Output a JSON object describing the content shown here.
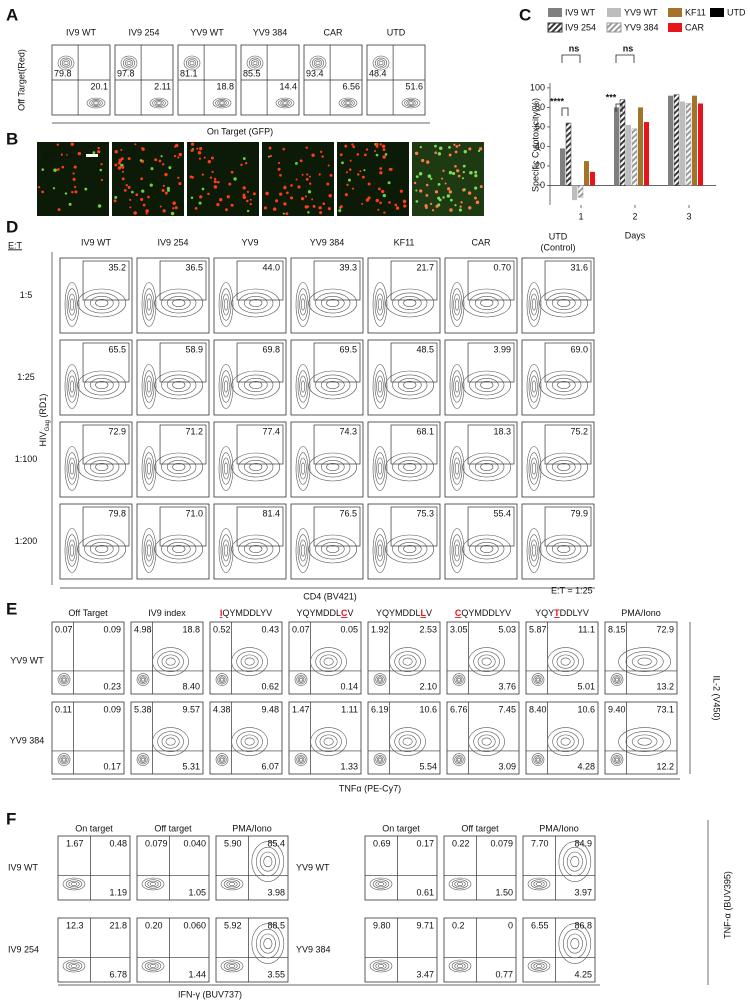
{
  "panel_a": {
    "label": "A",
    "y_label": "Off Target(Red)",
    "x_label": "On Target (GFP)",
    "plots": [
      {
        "title": "IV9 WT",
        "ul": "79.8",
        "lr": "20.1"
      },
      {
        "title": "IV9 254",
        "ul": "97.8",
        "lr": "2.11"
      },
      {
        "title": "YV9 WT",
        "ul": "81.1",
        "lr": "18.8"
      },
      {
        "title": "YV9 384",
        "ul": "85.5",
        "lr": "14.4"
      },
      {
        "title": "CAR",
        "ul": "93.4",
        "lr": "6.56"
      },
      {
        "title": "UTD",
        "ul": "48.4",
        "lr": "51.6"
      }
    ]
  },
  "panel_b": {
    "label": "B",
    "scale_bar": "100 μm"
  },
  "chart_data": {
    "type": "bar",
    "label": "C",
    "categories": [
      "1",
      "2",
      "3"
    ],
    "x_label": "Days",
    "y_label": "Specific Cytotoxicity(%)",
    "ylim": [
      -20,
      105
    ],
    "yticks": [
      0,
      20,
      40,
      60,
      80,
      100
    ],
    "series": [
      {
        "name": "IV9 WT",
        "color": "#7f7f7f",
        "values": [
          38,
          80,
          92
        ]
      },
      {
        "name": "IV9 254",
        "color": "#3a3a3a",
        "hatch": true,
        "values": [
          64,
          88,
          93
        ]
      },
      {
        "name": "YV9 WT",
        "color": "#bdbdbd",
        "values": [
          -15,
          62,
          86
        ]
      },
      {
        "name": "YV9 384",
        "color": "#9a9a9a",
        "hatch": true,
        "values": [
          -12,
          58,
          84
        ]
      },
      {
        "name": "KF11",
        "color": "#a5722a",
        "values": [
          25,
          80,
          92
        ]
      },
      {
        "name": "CAR",
        "color": "#e8141b",
        "values": [
          14,
          65,
          84
        ]
      },
      {
        "name": "UTD",
        "color": "#000000",
        "values": [
          0,
          0,
          0
        ]
      }
    ],
    "annotations": [
      "****",
      "ns",
      "***",
      "ns"
    ]
  },
  "panel_d": {
    "label": "D",
    "row_header": "E:T",
    "y_label": [
      "HIV",
      "Gag",
      " (RD1)"
    ],
    "x_label": "CD4 (BV421)",
    "note": "E:T = 1:25",
    "columns": [
      [
        "IV9 WT"
      ],
      [
        "IV9 254"
      ],
      [
        "YV9"
      ],
      [
        "YV9 384"
      ],
      [
        "KF11"
      ],
      [
        "CAR"
      ],
      [
        "UTD",
        "(Control)"
      ]
    ],
    "rows": [
      {
        "name": "1:5",
        "values": [
          "35.2",
          "36.5",
          "44.0",
          "39.3",
          "21.7",
          "0.70",
          "31.6"
        ]
      },
      {
        "name": "1:25",
        "values": [
          "65.5",
          "58.9",
          "69.8",
          "69.5",
          "48.5",
          "3.99",
          "69.0"
        ]
      },
      {
        "name": "1:100",
        "values": [
          "72.9",
          "71.2",
          "77.4",
          "74.3",
          "68.1",
          "18.3",
          "75.2"
        ]
      },
      {
        "name": "1:200",
        "values": [
          "79.8",
          "71.0",
          "81.4",
          "76.5",
          "75.3",
          "55.4",
          "79.9"
        ]
      }
    ]
  },
  "panel_e": {
    "label": "E",
    "x_label": "TNFα (PE-Cy7)",
    "y_label": "IL-2 (V450)",
    "columns": [
      [
        {
          "t": "Off Target"
        }
      ],
      [
        {
          "t": "IV9 index"
        }
      ],
      [
        {
          "t": "I",
          "red": true
        },
        {
          "t": "QYMDDLYV"
        }
      ],
      [
        {
          "t": "YQYMDDL"
        },
        {
          "t": "C",
          "red": true
        },
        {
          "t": "V"
        }
      ],
      [
        {
          "t": "YQYMDDL"
        },
        {
          "t": "L",
          "red": true
        },
        {
          "t": "V"
        }
      ],
      [
        {
          "t": "C",
          "red": true
        },
        {
          "t": "QYMDDLYV"
        }
      ],
      [
        {
          "t": "YQY"
        },
        {
          "t": "T",
          "red": true
        },
        {
          "t": "DDLYV"
        }
      ],
      [
        {
          "t": "PMA/Iono"
        }
      ]
    ],
    "rows": [
      {
        "name": "YV9 WT",
        "plots": [
          [
            "0.07",
            "0.09",
            "0.23"
          ],
          [
            "4.98",
            "18.8",
            "8.40"
          ],
          [
            "0.52",
            "0.43",
            "0.62"
          ],
          [
            "0.07",
            "0.05",
            "0.14"
          ],
          [
            "1.92",
            "2.53",
            "2.10"
          ],
          [
            "3.05",
            "5.03",
            "3.76"
          ],
          [
            "5.87",
            "11.1",
            "5.01"
          ],
          [
            "8.15",
            "72.9",
            "13.2"
          ]
        ]
      },
      {
        "name": "YV9 384",
        "plots": [
          [
            "0.11",
            "0.09",
            "0.17"
          ],
          [
            "5.38",
            "9.57",
            "5.31"
          ],
          [
            "4.38",
            "9.48",
            "6.07"
          ],
          [
            "1.47",
            "1.11",
            "1.33"
          ],
          [
            "6.19",
            "10.6",
            "5.54"
          ],
          [
            "6.76",
            "7.45",
            "3.09"
          ],
          [
            "8.40",
            "10.6",
            "4.28"
          ],
          [
            "9.40",
            "73.1",
            "12.2"
          ]
        ]
      }
    ]
  },
  "panel_f": {
    "label": "F",
    "x_label": "IFN-γ (BUV737)",
    "y_label": "TNF-α (BUV395)",
    "groups": [
      {
        "columns": [
          "On target",
          "Off target",
          "PMA/Iono"
        ],
        "rows": [
          {
            "name": "IV9 WT",
            "plots": [
              [
                "1.67",
                "0.48",
                "1.19"
              ],
              [
                "0.079",
                "0.040",
                "1.05"
              ],
              [
                "5.90",
                "85.4",
                "3.98"
              ]
            ]
          },
          {
            "name": "IV9 254",
            "plots": [
              [
                "12.3",
                "21.8",
                "6.78"
              ],
              [
                "0.20",
                "0.060",
                "1.44"
              ],
              [
                "5.92",
                "88.5",
                "3.55"
              ]
            ]
          }
        ]
      },
      {
        "columns": [
          "On target",
          "Off target",
          "PMA/Iono"
        ],
        "rows": [
          {
            "name": "YV9 WT",
            "plots": [
              [
                "0.69",
                "0.17",
                "0.61"
              ],
              [
                "0.22",
                "0.079",
                "1.50"
              ],
              [
                "7.70",
                "84.9",
                "3.97"
              ]
            ]
          },
          {
            "name": "YV9 384",
            "plots": [
              [
                "9.80",
                "9.71",
                "3.47"
              ],
              [
                "0.2",
                "0",
                "0.77"
              ],
              [
                "6.55",
                "86.8",
                "4.25"
              ]
            ]
          }
        ]
      }
    ]
  }
}
